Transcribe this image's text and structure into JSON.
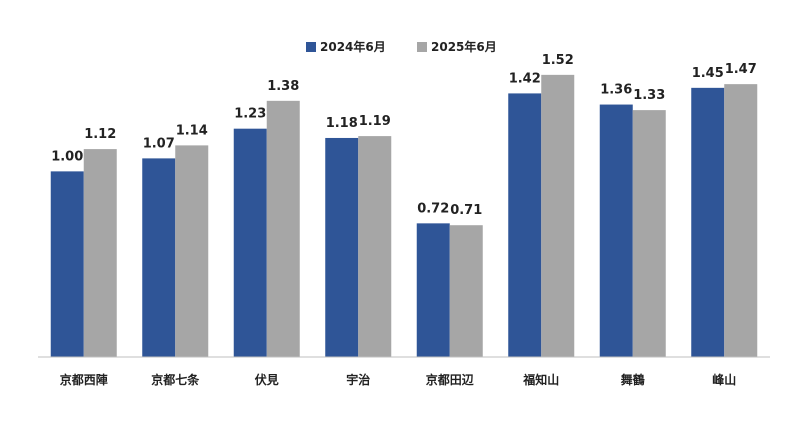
{
  "chart_data": {
    "type": "bar",
    "categories": [
      "京都西陣",
      "京都七条",
      "伏見",
      "宇治",
      "京都田辺",
      "福知山",
      "舞鶴",
      "峰山"
    ],
    "series": [
      {
        "name": "2024年6月",
        "color": "#2f5597",
        "values": [
          1.0,
          1.07,
          1.23,
          1.18,
          0.72,
          1.42,
          1.36,
          1.45
        ]
      },
      {
        "name": "2025年6月",
        "color": "#a6a6a6",
        "values": [
          1.12,
          1.14,
          1.38,
          1.19,
          0.71,
          1.52,
          1.33,
          1.47
        ]
      }
    ],
    "value_labels": [
      [
        "1.00",
        "1.07",
        "1.23",
        "1.18",
        "0.72",
        "1.42",
        "1.36",
        "1.45"
      ],
      [
        "1.12",
        "1.14",
        "1.38",
        "1.19",
        "0.71",
        "1.52",
        "1.33",
        "1.47"
      ]
    ],
    "ylim": [
      0,
      1.6
    ],
    "legend_position": "top-center",
    "grid": false
  }
}
